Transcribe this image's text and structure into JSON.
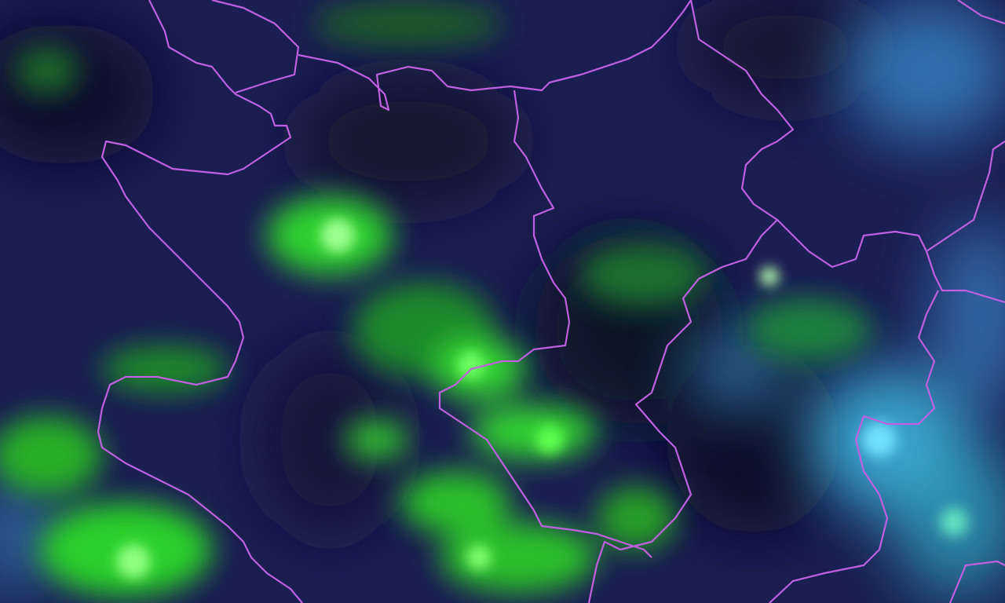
{
  "map": {
    "kind": "satellite-false-color-imagery",
    "colors": {
      "background": "#1a1d4f",
      "dark_patch": "#0e0f22",
      "vegetation_green": "#3cff3c",
      "bright_green": "#b8ffb0",
      "cloud_cyan": "#4fc4e8",
      "border": "#c060e0"
    }
  }
}
